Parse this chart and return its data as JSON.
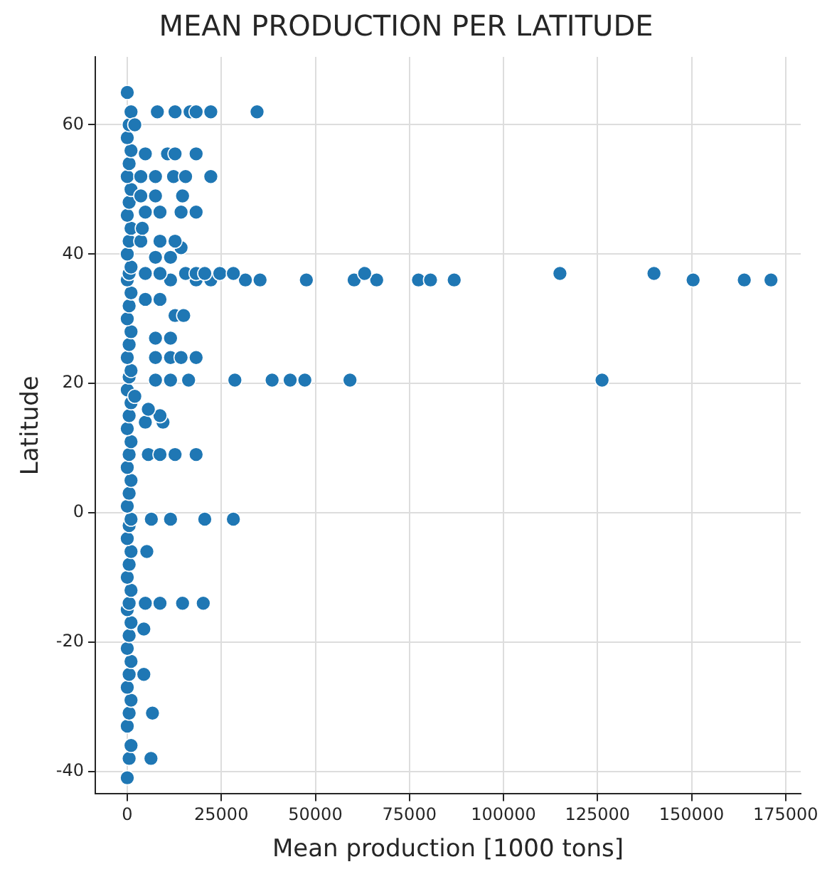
{
  "chart_data": {
    "type": "scatter",
    "title": "MEAN PRODUCTION PER LATITUDE",
    "xlabel": "Mean production [1000 tons]",
    "ylabel": "Latitude",
    "xlim": [
      -8500,
      179000
    ],
    "xticks": [
      0,
      25000,
      50000,
      75000,
      100000,
      125000,
      150000,
      175000
    ],
    "ylim": [
      -43.5,
      70.5
    ],
    "yticks": [
      -40,
      -20,
      0,
      20,
      40,
      60
    ],
    "grid": true,
    "marker": "circle",
    "series": [
      {
        "color": "#1f77b4",
        "x": [
          0,
          500,
          1000,
          0,
          500,
          1000,
          0,
          500,
          1000,
          0,
          500,
          1000,
          0,
          500,
          1000,
          0,
          500,
          1000,
          0,
          500,
          1000,
          0,
          500,
          1000,
          0,
          500,
          1000,
          0,
          500,
          1000,
          0,
          500,
          1000,
          0,
          500,
          1000,
          0,
          500,
          1000,
          0,
          500,
          1000,
          0,
          500,
          1000,
          0,
          500,
          1000,
          0,
          500,
          1000,
          0,
          500,
          1000,
          0,
          6300,
          6700,
          4400,
          4400,
          4800,
          8700,
          14700,
          20200,
          5200,
          6400,
          11500,
          20600,
          28200,
          5600,
          8700,
          12700,
          18300,
          4800,
          9500,
          8700,
          5600,
          2000,
          7500,
          11500,
          16300,
          28600,
          38500,
          43300,
          47200,
          59200,
          126200,
          7500,
          11500,
          14300,
          18300,
          7500,
          11500,
          12700,
          15000,
          4800,
          8700,
          11500,
          18300,
          22200,
          31400,
          35300,
          47600,
          60300,
          66300,
          77400,
          80600,
          86900,
          150400,
          164000,
          171100,
          4800,
          8700,
          15500,
          18300,
          20600,
          24600,
          28200,
          63100,
          115000,
          140000,
          7500,
          11500,
          14300,
          3600,
          8700,
          12700,
          4000,
          4800,
          8700,
          14300,
          18300,
          3600,
          7500,
          14700,
          3600,
          7500,
          12300,
          15500,
          22200,
          4800,
          10700,
          12700,
          18300,
          2000,
          8000,
          12700,
          16700,
          18300,
          22200,
          34500
        ],
        "values": [
          -41,
          -38,
          -36,
          -33,
          -31,
          -29,
          -27,
          -25,
          -23,
          -21,
          -19,
          -17,
          -15,
          -14,
          -12,
          -10,
          -8,
          -6,
          -4,
          -2,
          -1,
          1,
          3,
          5,
          7,
          9,
          11,
          13,
          15,
          17,
          19,
          21,
          22,
          24,
          26,
          28,
          30,
          32,
          34,
          36,
          37,
          38,
          40,
          42,
          44,
          46,
          48,
          50,
          52,
          54,
          56,
          58,
          60,
          62,
          65,
          -38,
          -31,
          -25,
          -18,
          -14,
          -14,
          -14,
          -14,
          -6,
          -1,
          -1,
          -1,
          -1,
          9,
          9,
          9,
          9,
          14,
          14,
          15,
          16,
          18,
          20.5,
          20.5,
          20.5,
          20.5,
          20.5,
          20.5,
          20.5,
          20.5,
          20.5,
          24,
          24,
          24,
          24,
          27,
          27,
          30.5,
          30.5,
          33,
          33,
          36,
          36,
          36,
          36,
          36,
          36,
          36,
          36,
          36,
          36,
          36,
          36,
          36,
          36,
          37,
          37,
          37,
          37,
          37,
          37,
          37,
          37,
          37,
          37,
          39.5,
          39.5,
          41,
          42,
          42,
          42,
          44,
          46.5,
          46.5,
          46.5,
          46.5,
          49,
          49,
          49,
          52,
          52,
          52,
          52,
          52,
          55.5,
          55.5,
          55.5,
          55.5,
          60,
          62,
          62,
          62,
          62,
          62,
          62
        ]
      }
    ]
  }
}
